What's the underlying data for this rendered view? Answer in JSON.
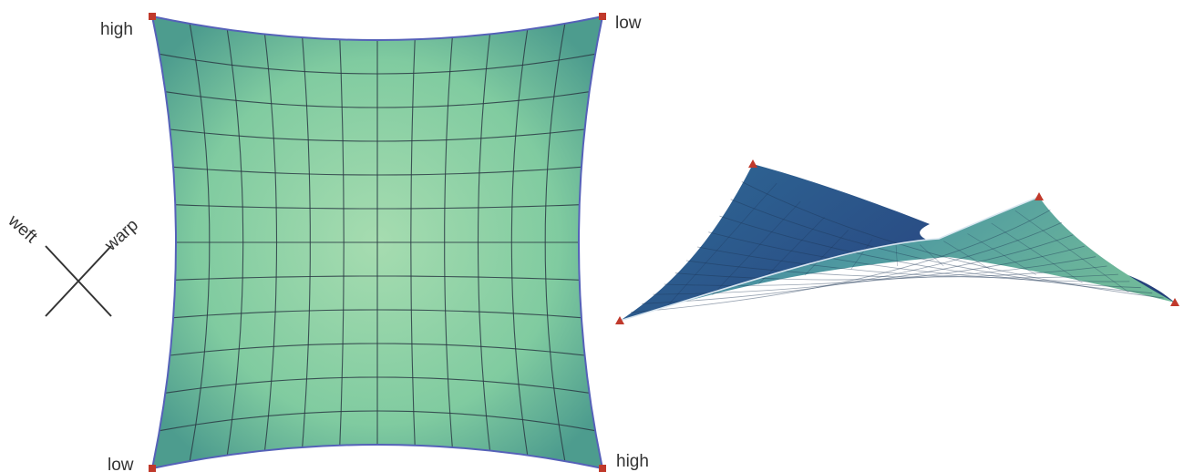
{
  "plan_view": {
    "corners": {
      "top_left": "high",
      "top_right": "low",
      "bottom_left": "low",
      "bottom_right": "high"
    },
    "grid_divisions": 12
  },
  "fiber_directions": {
    "weft": "weft",
    "warp": "warp"
  },
  "colors": {
    "membrane_light": "#9ed8ac",
    "membrane_mid": "#7fcaa0",
    "membrane_dark": "#4a9a8e",
    "grid_line": "#2a3a44",
    "edge_line": "#5561b8",
    "anchor": "#c0392b",
    "saddle_dark": "#2a5d8c",
    "saddle_light": "#6fb8a0",
    "axis_line": "#333333"
  }
}
